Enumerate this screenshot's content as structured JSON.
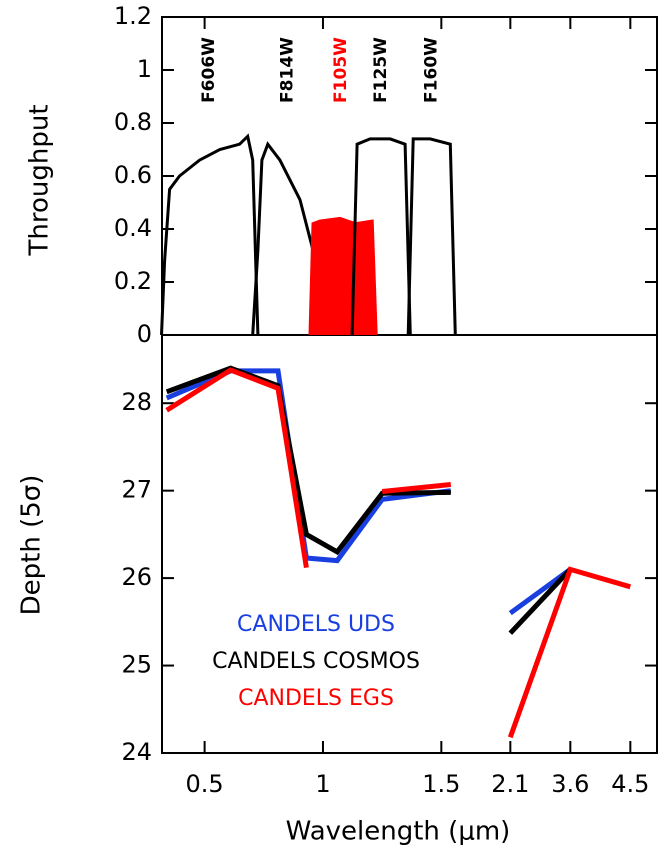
{
  "chart_data": [
    {
      "type": "line",
      "ylabel": "Throughput",
      "ylim": [
        0,
        1.2
      ],
      "yticks": [
        0,
        0.2,
        0.4,
        0.6,
        0.8,
        1,
        1.2
      ],
      "series": [
        {
          "name": "F606W",
          "color": "#000000",
          "fill": false,
          "x": [
            0.318,
            0.331,
            0.352,
            0.394,
            0.479,
            0.564,
            0.648,
            0.682,
            0.703,
            0.725
          ],
          "values": [
            0,
            0.28,
            0.55,
            0.6,
            0.66,
            0.7,
            0.72,
            0.75,
            0.66,
            0
          ]
        },
        {
          "name": "F814W",
          "color": "#000000",
          "fill": false,
          "x": [
            0.703,
            0.725,
            0.742,
            0.767,
            0.818,
            0.903,
            0.958,
            1.008,
            1.03
          ],
          "values": [
            0,
            0.32,
            0.66,
            0.72,
            0.66,
            0.51,
            0.32,
            0.06,
            0
          ]
        },
        {
          "name": "F105W",
          "color": "#ff0000",
          "fill": true,
          "x": [
            0.945,
            0.958,
            0.987,
            1.072,
            1.136,
            1.208,
            1.225
          ],
          "values": [
            0,
            0.42,
            0.43,
            0.44,
            0.42,
            0.43,
            0
          ]
        },
        {
          "name": "F125W",
          "color": "#000000",
          "fill": false,
          "x": [
            1.123,
            1.144,
            1.199,
            1.284,
            1.347,
            1.369
          ],
          "values": [
            0,
            0.72,
            0.74,
            0.74,
            0.72,
            0
          ]
        },
        {
          "name": "F160W",
          "color": "#000000",
          "fill": false,
          "x": [
            1.36,
            1.381,
            1.453,
            1.538,
            1.559
          ],
          "values": [
            0,
            0.74,
            0.74,
            0.72,
            0
          ]
        }
      ]
    },
    {
      "type": "line",
      "ylabel": "Depth (5σ)",
      "xlabel": "Wavelength (μm)",
      "xlim": [
        0.32,
        4.9
      ],
      "xticks": [
        0.5,
        1,
        1.5,
        2.1,
        3.6,
        4.5
      ],
      "ylim": [
        24,
        28.78
      ],
      "yticks": [
        24,
        25,
        26,
        27,
        28
      ],
      "x": [
        0.34,
        0.61,
        0.81,
        0.93,
        1.06,
        1.25,
        1.54,
        2.1,
        3.6,
        4.5
      ],
      "series": [
        {
          "name": "CANDELS UDS",
          "color": "#1a3fe0",
          "values": [
            28.06,
            28.37,
            28.37,
            26.23,
            26.2,
            26.9,
            27.0,
            25.6,
            26.1,
            null
          ]
        },
        {
          "name": "CANDELS COSMOS",
          "color": "#000000",
          "values": [
            28.13,
            28.4,
            28.2,
            26.5,
            26.3,
            26.97,
            26.98,
            25.37,
            26.1,
            null
          ]
        },
        {
          "name": "CANDELS EGS",
          "color": "#ff0000",
          "values": [
            27.92,
            28.38,
            28.17,
            26.12,
            null,
            26.99,
            27.07,
            24.18,
            26.1,
            25.9
          ]
        }
      ]
    }
  ]
}
